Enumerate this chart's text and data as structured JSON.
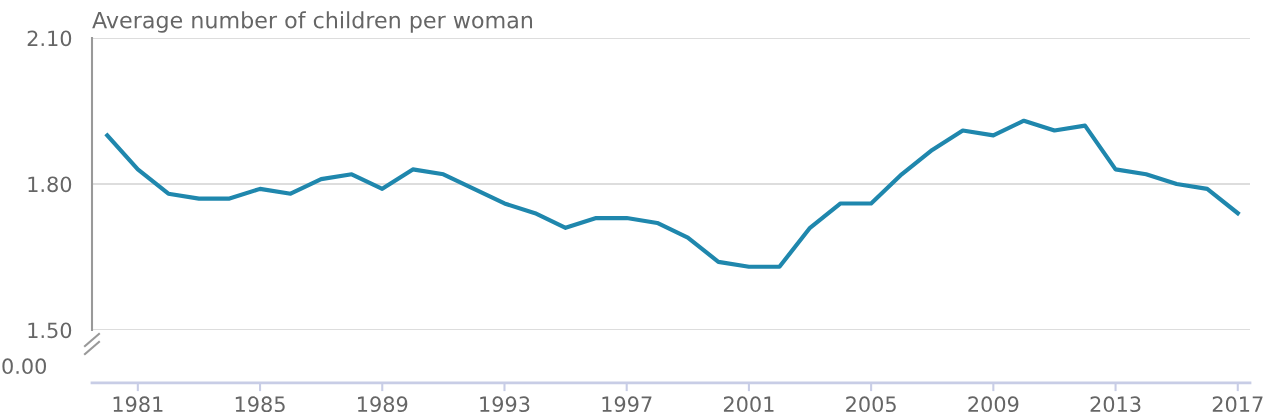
{
  "chart_data": {
    "type": "line",
    "ylabel": "Average number of children per woman",
    "x": [
      1980,
      1981,
      1982,
      1983,
      1984,
      1985,
      1986,
      1987,
      1988,
      1989,
      1990,
      1991,
      1992,
      1993,
      1994,
      1995,
      1996,
      1997,
      1998,
      1999,
      2000,
      2001,
      2002,
      2003,
      2004,
      2005,
      2006,
      2007,
      2008,
      2009,
      2010,
      2011,
      2012,
      2013,
      2014,
      2015,
      2016,
      2017
    ],
    "series": [
      {
        "color": "#1f87ad",
        "values": [
          1.9,
          1.83,
          1.78,
          1.77,
          1.77,
          1.79,
          1.78,
          1.81,
          1.82,
          1.79,
          1.83,
          1.82,
          1.79,
          1.76,
          1.74,
          1.71,
          1.73,
          1.73,
          1.72,
          1.69,
          1.64,
          1.63,
          1.63,
          1.71,
          1.76,
          1.76,
          1.82,
          1.87,
          1.91,
          1.9,
          1.93,
          1.91,
          1.92,
          1.83,
          1.82,
          1.8,
          1.79,
          1.74
        ]
      }
    ],
    "xlim": [
      1979.5,
      2017.4
    ],
    "xticks": [
      1981,
      1985,
      1989,
      1993,
      1997,
      2001,
      2005,
      2009,
      2013,
      2017
    ],
    "ylim": [
      1.5,
      2.1
    ],
    "yticks": [
      {
        "value": 1.5,
        "label": "1.50"
      },
      {
        "value": 1.8,
        "label": "1.80"
      },
      {
        "value": 2.1,
        "label": "2.10"
      }
    ],
    "annotations": [
      "0.00"
    ],
    "grid": "y",
    "marker": "none",
    "line_style": "solid"
  }
}
